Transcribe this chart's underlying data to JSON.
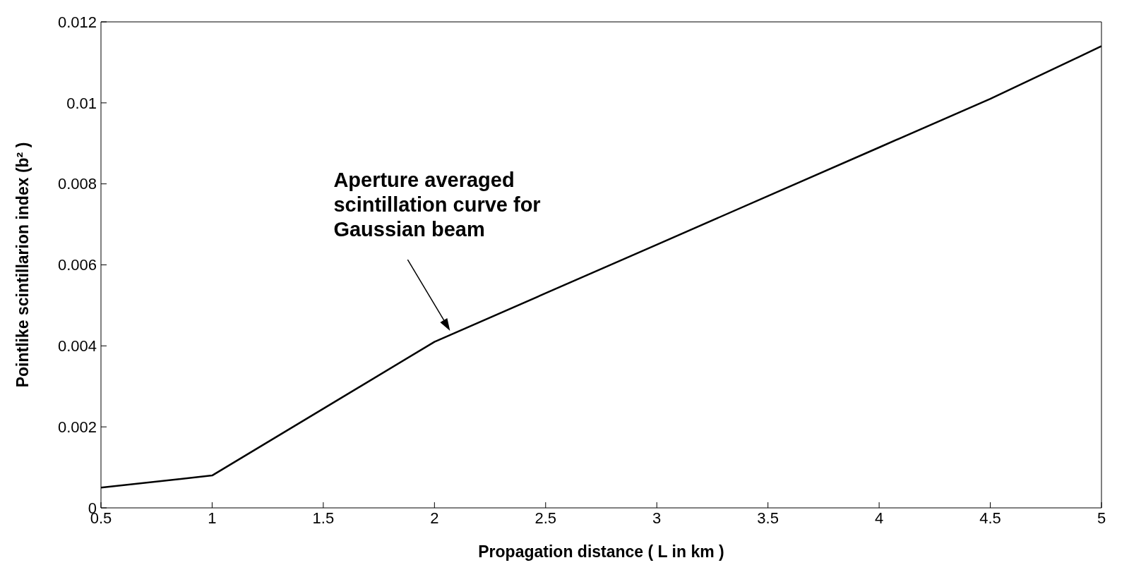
{
  "chart_data": {
    "type": "line",
    "xlabel": "Propagation distance ( L in km )",
    "ylabel": "Pointlike scintillarion index (b² )",
    "x": [
      0.5,
      1,
      1.5,
      2,
      2.5,
      3,
      3.5,
      4,
      4.5,
      5
    ],
    "series": [
      {
        "color": "#000000",
        "values": [
          0.0005,
          0.0008,
          0.00245,
          0.0041,
          0.0053,
          0.0065,
          0.0077,
          0.0089,
          0.0101,
          0.0114
        ]
      }
    ],
    "xlim": [
      0.5,
      5
    ],
    "xticks": [
      0.5,
      1,
      1.5,
      2,
      2.5,
      3,
      3.5,
      4,
      4.5,
      5
    ],
    "ylim": [
      0,
      0.012
    ],
    "yticks": [
      0,
      0.002,
      0.004,
      0.006,
      0.008,
      0.01,
      0.012
    ],
    "grid": false,
    "legend": false,
    "marker": "none",
    "line_style": "solid",
    "annotations": [
      {
        "text": "Aperture averaged scintillation curve for Gaussian beam",
        "x": 2.07,
        "y": 0.0043
      }
    ]
  }
}
